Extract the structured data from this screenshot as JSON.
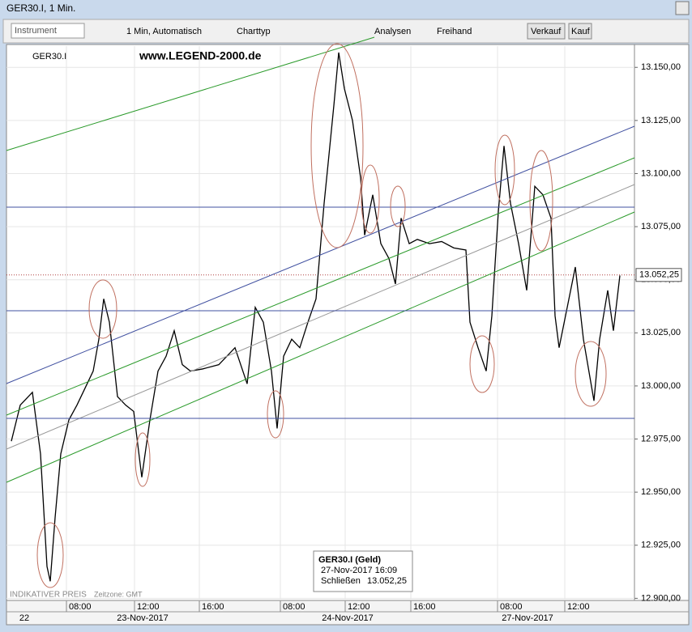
{
  "window_title": "GER30.I, 1 Min.",
  "toolbar": {
    "instrument": "Instrument",
    "interval": "1 Min,  Automatisch",
    "charttype": "Charttyp",
    "analysen": "Analysen",
    "freihand": "Freihand",
    "verkauf": "Verkauf",
    "kauf": "Kauf"
  },
  "chart_data": {
    "type": "line",
    "watermark": "www.LEGEND-2000.de",
    "footer_note": "INDIKATIVER PREIS",
    "timezone": "Zeitzone: GMT",
    "last_price": 13052.25,
    "last_price_label": "13.052,25",
    "tooltip": {
      "title": "GER30.I (Geld)",
      "time": "27-Nov-2017 16:09",
      "close_label": "Schließen",
      "close": "13.052,25"
    },
    "x": [
      6,
      17,
      32,
      42,
      50,
      54,
      60,
      67,
      77,
      87,
      97,
      107,
      114,
      120,
      127,
      137,
      147,
      157,
      167,
      177,
      187,
      197,
      207,
      217,
      227,
      242,
      262,
      282,
      297,
      307,
      317,
      327,
      334,
      342,
      352,
      362,
      372,
      382,
      392,
      397,
      404,
      410,
      417,
      427,
      437,
      442,
      452,
      462,
      472,
      480,
      487,
      497,
      507,
      522,
      537,
      552,
      567,
      572,
      582,
      592,
      599,
      607,
      614,
      622,
      632,
      642,
      652,
      662,
      672,
      677,
      682,
      692,
      702,
      712,
      725,
      732,
      742,
      749,
      757
    ],
    "series": [
      {
        "name": "GER30.I",
        "color": "#000000",
        "values": [
          12974,
          12991,
          12997,
          12968,
          12915,
          12908,
          12938,
          12968,
          12984,
          12991,
          12999,
          13007,
          13022,
          13041,
          13030,
          12995,
          12991,
          12988,
          12957,
          12984,
          13007,
          13014,
          13026,
          13010,
          13007,
          13008,
          13010,
          13018,
          13001,
          13037,
          13030,
          13007,
          12980,
          13014,
          13022,
          13018,
          13030,
          13041,
          13086,
          13105,
          13132,
          13157,
          13140,
          13125,
          13098,
          13071,
          13090,
          13067,
          13060,
          13048,
          13079,
          13067,
          13069,
          13067,
          13068,
          13065,
          13064,
          13030,
          13018,
          13007,
          13033,
          13082,
          13113,
          13086,
          13067,
          13045,
          13094,
          13090,
          13079,
          13033,
          13018,
          13037,
          13056,
          13022,
          12993,
          13022,
          13045,
          13026,
          13052
        ]
      }
    ],
    "xlim": [
      0,
      775
    ],
    "ylim": [
      12899,
      13160
    ],
    "xticks": [
      {
        "value": 74,
        "label": "08:00"
      },
      {
        "value": 158,
        "label": "12:00"
      },
      {
        "value": 238,
        "label": "16:00"
      },
      {
        "value": 338,
        "label": "08:00"
      },
      {
        "value": 418,
        "label": "12:00"
      },
      {
        "value": 499,
        "label": "16:00"
      },
      {
        "value": 606,
        "label": "08:00"
      },
      {
        "value": 689,
        "label": "12:00"
      }
    ],
    "dates": [
      {
        "value": 22,
        "label": "22"
      },
      {
        "value": 168,
        "label": "23-Nov-2017"
      },
      {
        "value": 421,
        "label": "24-Nov-2017"
      },
      {
        "value": 643,
        "label": "27-Nov-2017"
      }
    ],
    "yticks": [
      {
        "value": 12900,
        "label": "12.900,00"
      },
      {
        "value": 12925,
        "label": "12.925,00"
      },
      {
        "value": 12950,
        "label": "12.950,00"
      },
      {
        "value": 12975,
        "label": "12.975,00"
      },
      {
        "value": 13000,
        "label": "13.000,00"
      },
      {
        "value": 13025,
        "label": "13.025,00"
      },
      {
        "value": 13050,
        "label": "13.050,00"
      },
      {
        "value": 13075,
        "label": "13.075,00"
      },
      {
        "value": 13100,
        "label": "13.100,00"
      },
      {
        "value": 13125,
        "label": "13.125,00"
      },
      {
        "value": 13150,
        "label": "13.150,00"
      }
    ],
    "grid": true
  }
}
